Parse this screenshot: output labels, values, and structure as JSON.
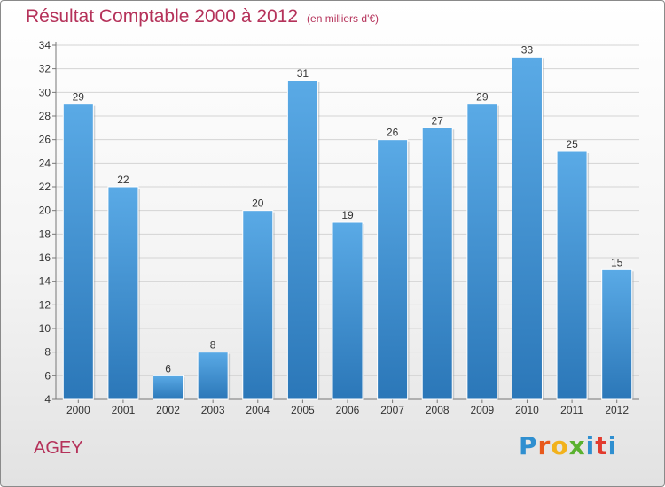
{
  "header": {
    "title": "Résultat Comptable 2000 à 2012",
    "subtitle": "(en milliers d'€)"
  },
  "footer": {
    "commune": "AGEY",
    "logo_letters": [
      "P",
      "r",
      "o",
      "x",
      "i",
      "t",
      "i"
    ],
    "logo_colors": [
      "#2f8fd0",
      "#e8591c",
      "#f2b21c",
      "#5ab12f",
      "#2f8fd0",
      "#e23b2e",
      "#2f8fd0"
    ]
  },
  "colors": {
    "bar": "#4ea0de",
    "bar_dark": "#2b77b8",
    "title": "#b5325a",
    "grid": "#d4d4d4"
  },
  "chart_data": {
    "type": "bar",
    "title": "Résultat Comptable 2000 à 2012",
    "subtitle": "(en milliers d'€)",
    "xlabel": "",
    "ylabel": "",
    "categories": [
      "2000",
      "2001",
      "2002",
      "2003",
      "2004",
      "2005",
      "2006",
      "2007",
      "2008",
      "2009",
      "2010",
      "2011",
      "2012"
    ],
    "values": [
      29,
      22,
      6,
      8,
      20,
      31,
      19,
      26,
      27,
      29,
      33,
      25,
      15
    ],
    "ylim": [
      4,
      34
    ],
    "yticks": [
      4,
      6,
      8,
      10,
      12,
      14,
      16,
      18,
      20,
      22,
      24,
      26,
      28,
      30,
      32,
      34
    ],
    "grid": true,
    "legend": "none"
  }
}
